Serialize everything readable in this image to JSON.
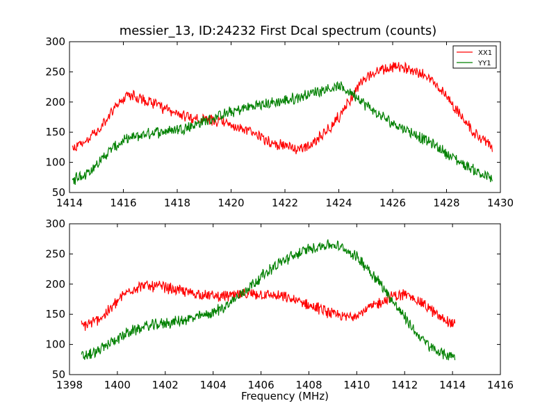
{
  "title": "messier_13, ID:24232 First Dcal spectrum (counts)",
  "xlabel": "Frequency (MHz)",
  "colors": {
    "XX1": "#ff0000",
    "YY1": "#008000"
  },
  "chart_data": [
    {
      "type": "line",
      "title": "messier_13, ID:24232 First Dcal spectrum (counts)",
      "xlabel": "",
      "ylabel": "",
      "xlim": [
        1414,
        1430
      ],
      "ylim": [
        50,
        300
      ],
      "xticks": [
        1414,
        1416,
        1418,
        1420,
        1422,
        1424,
        1426,
        1428,
        1430
      ],
      "yticks": [
        50,
        100,
        150,
        200,
        250,
        300
      ],
      "grid": false,
      "legend": {
        "location": "top-right",
        "entries": [
          "XX1",
          "YY1"
        ]
      },
      "x_range": [
        1414.1,
        1429.7
      ],
      "series": [
        {
          "name": "XX1",
          "color": "#ff0000",
          "x": [
            1414.1,
            1415.0,
            1415.5,
            1416.0,
            1416.4,
            1417.0,
            1417.5,
            1418.0,
            1418.5,
            1419.0,
            1419.5,
            1420.0,
            1420.5,
            1421.0,
            1421.5,
            1422.0,
            1422.5,
            1423.0,
            1423.5,
            1424.0,
            1424.5,
            1425.0,
            1425.5,
            1426.0,
            1426.5,
            1427.0,
            1427.5,
            1428.0,
            1428.5,
            1429.0,
            1429.7
          ],
          "values": [
            120,
            150,
            180,
            207,
            210,
            200,
            188,
            180,
            175,
            170,
            168,
            162,
            153,
            145,
            133,
            127,
            122,
            130,
            150,
            175,
            210,
            240,
            252,
            257,
            256,
            250,
            235,
            210,
            180,
            150,
            125
          ]
        },
        {
          "name": "YY1",
          "color": "#008000",
          "x": [
            1414.1,
            1414.5,
            1415.0,
            1415.5,
            1416.0,
            1416.5,
            1417.0,
            1417.5,
            1418.0,
            1418.5,
            1419.0,
            1419.5,
            1420.0,
            1420.5,
            1421.0,
            1421.5,
            1422.0,
            1422.5,
            1423.0,
            1423.5,
            1424.0,
            1424.5,
            1425.0,
            1425.5,
            1426.0,
            1426.5,
            1427.0,
            1427.5,
            1428.0,
            1428.5,
            1429.0,
            1429.7
          ],
          "values": [
            70,
            78,
            95,
            120,
            135,
            143,
            148,
            152,
            155,
            160,
            168,
            176,
            183,
            190,
            195,
            198,
            202,
            208,
            215,
            222,
            225,
            215,
            195,
            178,
            165,
            155,
            142,
            130,
            115,
            100,
            88,
            72
          ]
        }
      ]
    },
    {
      "type": "line",
      "title": "",
      "xlabel": "Frequency (MHz)",
      "ylabel": "",
      "xlim": [
        1398,
        1416
      ],
      "ylim": [
        50,
        300
      ],
      "xticks": [
        1398,
        1400,
        1402,
        1404,
        1406,
        1408,
        1410,
        1412,
        1414,
        1416
      ],
      "yticks": [
        50,
        100,
        150,
        200,
        250,
        300
      ],
      "grid": false,
      "x_range": [
        1398.5,
        1414.1
      ],
      "series": [
        {
          "name": "XX1",
          "color": "#ff0000",
          "x": [
            1398.5,
            1399.0,
            1399.5,
            1400.0,
            1400.5,
            1401.0,
            1401.5,
            1402.0,
            1402.5,
            1403.0,
            1403.5,
            1404.0,
            1404.5,
            1405.0,
            1405.5,
            1406.0,
            1406.5,
            1407.0,
            1407.5,
            1408.0,
            1408.5,
            1409.0,
            1409.5,
            1410.0,
            1410.5,
            1411.0,
            1411.5,
            1412.0,
            1412.5,
            1413.0,
            1413.5,
            1414.1
          ],
          "values": [
            130,
            137,
            150,
            172,
            190,
            197,
            197,
            195,
            190,
            186,
            183,
            180,
            180,
            182,
            183,
            183,
            181,
            178,
            172,
            165,
            158,
            150,
            145,
            150,
            160,
            170,
            180,
            183,
            175,
            160,
            145,
            133
          ]
        },
        {
          "name": "YY1",
          "color": "#008000",
          "x": [
            1398.5,
            1399.0,
            1399.5,
            1400.0,
            1400.5,
            1401.0,
            1401.5,
            1402.0,
            1402.5,
            1403.0,
            1403.5,
            1404.0,
            1404.5,
            1405.0,
            1405.5,
            1406.0,
            1406.5,
            1407.0,
            1407.5,
            1408.0,
            1408.5,
            1409.0,
            1409.5,
            1410.0,
            1410.5,
            1411.0,
            1411.5,
            1412.0,
            1412.5,
            1413.0,
            1413.5,
            1414.1
          ],
          "values": [
            80,
            85,
            97,
            110,
            120,
            128,
            132,
            135,
            138,
            142,
            147,
            153,
            163,
            178,
            195,
            212,
            228,
            240,
            250,
            258,
            264,
            265,
            258,
            245,
            225,
            200,
            172,
            145,
            118,
            98,
            85,
            80
          ]
        }
      ]
    }
  ]
}
